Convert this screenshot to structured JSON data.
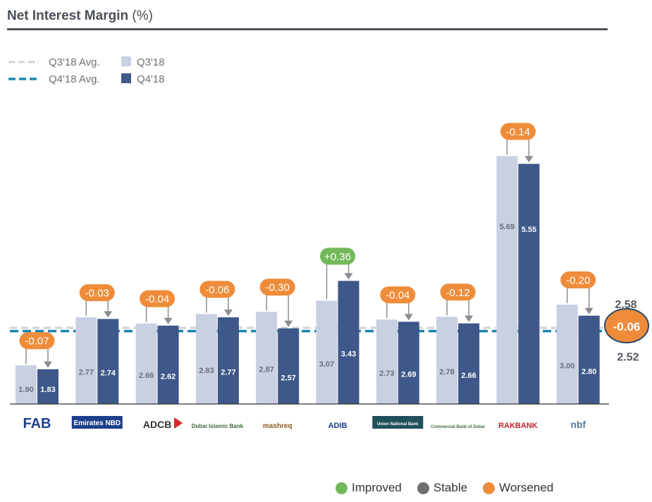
{
  "title": "Net Interest Margin",
  "title_unit": "(%)",
  "colors": {
    "q3": "#c9d0e2",
    "q4": "#3e5889",
    "q3_avg_line": "#cfd2d8",
    "q4_avg_line": "#1a86b0",
    "improved": "#72b85a",
    "stable": "#6f6f6f",
    "worsened": "#ef8c3a",
    "axis": "#333333"
  },
  "legend": {
    "q3_avg": "Q3'18 Avg.",
    "q4_avg": "Q4'18 Avg.",
    "q3": "Q3'18",
    "q4": "Q4'18"
  },
  "status_legend": [
    {
      "label": "Improved",
      "color_key": "improved"
    },
    {
      "label": "Stable",
      "color_key": "stable"
    },
    {
      "label": "Worsened",
      "color_key": "worsened"
    }
  ],
  "chart_data": {
    "type": "bar",
    "categories": [
      "FAB",
      "Emirates NBD",
      "ADCB",
      "Dubai Islamic Bank",
      "mashreq",
      "ADIB",
      "Union National Bank",
      "Commercial Bank of Dubai",
      "RAKBANK",
      "nbf"
    ],
    "series": [
      {
        "name": "Q3'18",
        "values": [
          1.9,
          2.77,
          2.66,
          2.83,
          2.87,
          3.07,
          2.73,
          2.78,
          5.69,
          3.0
        ]
      },
      {
        "name": "Q4'18",
        "values": [
          1.83,
          2.74,
          2.62,
          2.77,
          2.57,
          3.43,
          2.69,
          2.66,
          5.55,
          2.8
        ]
      }
    ],
    "value_labels": {
      "q3": [
        "1.90",
        "2.77",
        "2.66",
        "2.83",
        "2.87",
        "3.07",
        "2.73",
        "2.78",
        "5.69",
        "3.00"
      ],
      "q4": [
        "1.83",
        "2.74",
        "2.62",
        "2.77",
        "2.57",
        "3.43",
        "2.69",
        "2.66",
        "5.55",
        "2.80"
      ]
    },
    "changes": [
      "-0.07",
      "-0.03",
      "-0.04",
      "-0.06",
      "-0.30",
      "+0.36",
      "-0.04",
      "-0.12",
      "-0.14",
      "-0.20"
    ],
    "change_status": [
      "worsened",
      "worsened",
      "worsened",
      "worsened",
      "worsened",
      "improved",
      "worsened",
      "worsened",
      "worsened",
      "worsened"
    ],
    "averages": {
      "q3": 2.58,
      "q4": 2.52,
      "q3_label": "2.58",
      "q4_label": "2.52",
      "change": "-0.06",
      "change_status": "worsened"
    },
    "ylim": [
      1.2,
      6.0
    ],
    "grid": false,
    "legend_position": "top-left"
  }
}
